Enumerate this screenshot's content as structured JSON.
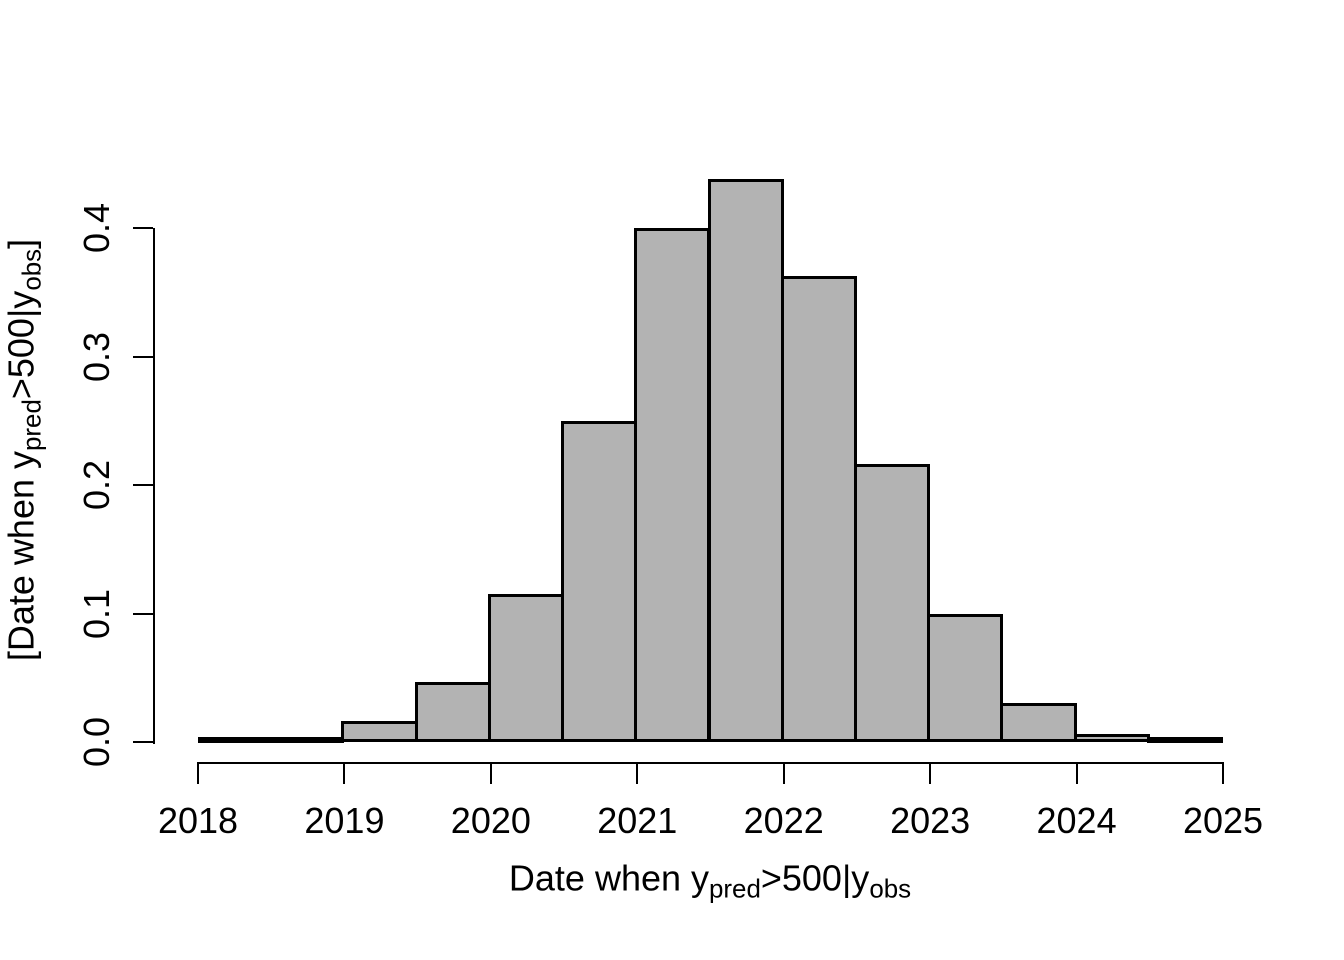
{
  "figure": {
    "background": "#ffffff",
    "xlabel_parts": {
      "pre": "Date when y",
      "sub1": "pred",
      "mid": ">500|y",
      "sub2": "obs",
      "post": ""
    },
    "ylabel_parts": {
      "pre": "[Date when y",
      "sub1": "pred",
      "mid": ">500|y",
      "sub2": "obs",
      "post": "]"
    }
  },
  "chart_data": {
    "type": "bar",
    "subtype": "histogram",
    "title": "",
    "xlabel": "Date when y_pred>500|y_obs",
    "ylabel": "[Date when y_pred>500|y_obs]",
    "x_tick_labels": [
      "2018",
      "2019",
      "2020",
      "2021",
      "2022",
      "2023",
      "2024",
      "2025"
    ],
    "x_tick_values": [
      2018,
      2019,
      2020,
      2021,
      2022,
      2023,
      2024,
      2025
    ],
    "y_tick_labels": [
      "0.0",
      "0.1",
      "0.2",
      "0.3",
      "0.4"
    ],
    "y_tick_values": [
      0.0,
      0.1,
      0.2,
      0.3,
      0.4
    ],
    "xlim": [
      2018,
      2025
    ],
    "ylim": [
      0,
      0.45
    ],
    "bin_start": 2018.0,
    "bin_width": 0.5,
    "densities": [
      0.001,
      0.003,
      0.016,
      0.047,
      0.115,
      0.25,
      0.4,
      0.438,
      0.363,
      0.216,
      0.1,
      0.03,
      0.006,
      0.001
    ],
    "bin_edges": [
      2018.0,
      2018.5,
      2019.0,
      2019.5,
      2020.0,
      2020.5,
      2021.0,
      2021.5,
      2022.0,
      2022.5,
      2023.0,
      2023.5,
      2024.0,
      2024.5,
      2025.0
    ],
    "bar_fill": "#b3b3b3",
    "bar_border": "#000000",
    "axis_color": "#000000",
    "grid": false,
    "legend": null
  }
}
